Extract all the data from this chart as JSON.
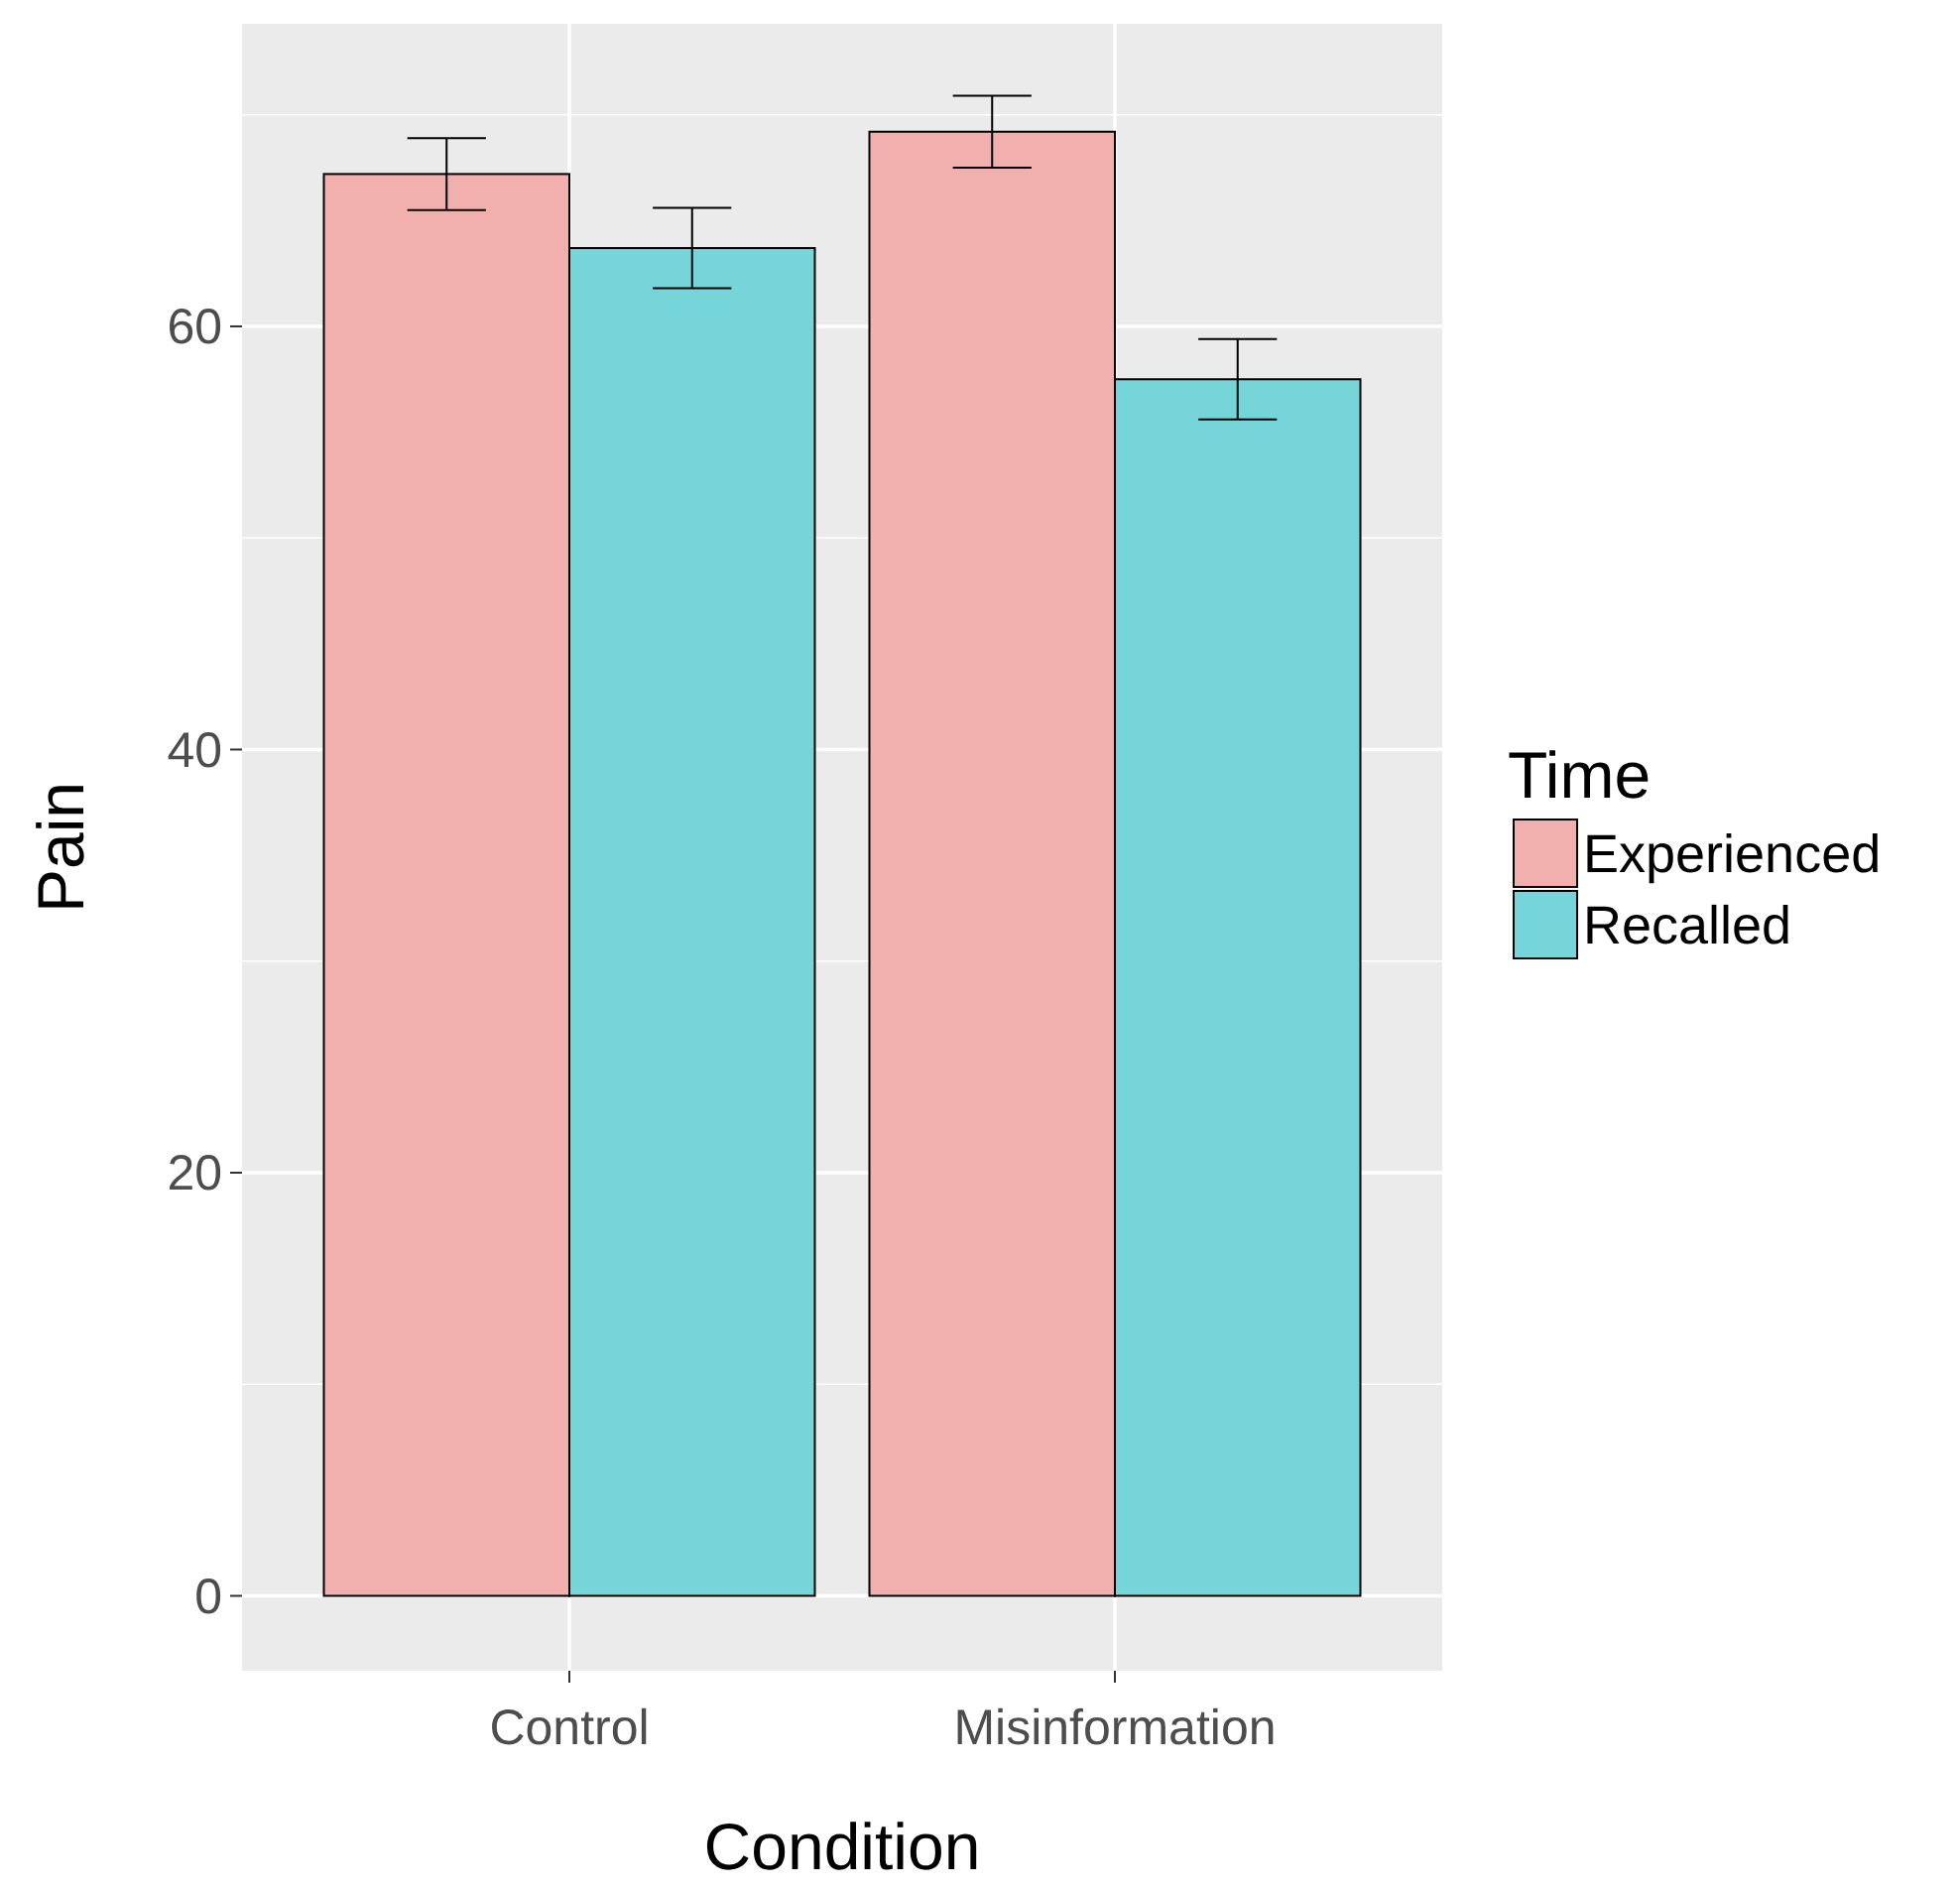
{
  "chart_data": {
    "type": "bar",
    "xlabel": "Condition",
    "ylabel": "Pain",
    "legend_title": "Time",
    "legend": "right",
    "grid": true,
    "categories": [
      "Control",
      "Misinformation"
    ],
    "series": [
      {
        "name": "Experienced",
        "color": "#f1b0ad",
        "values": [
          67.2,
          69.2
        ],
        "errors": [
          1.7,
          1.7
        ]
      },
      {
        "name": "Recalled",
        "color": "#75d5d8",
        "values": [
          63.7,
          57.5
        ],
        "errors": [
          1.9,
          1.9
        ]
      }
    ],
    "ylim": [
      -3.54,
      74.3
    ],
    "yticks": [
      0,
      20,
      40,
      60
    ]
  }
}
